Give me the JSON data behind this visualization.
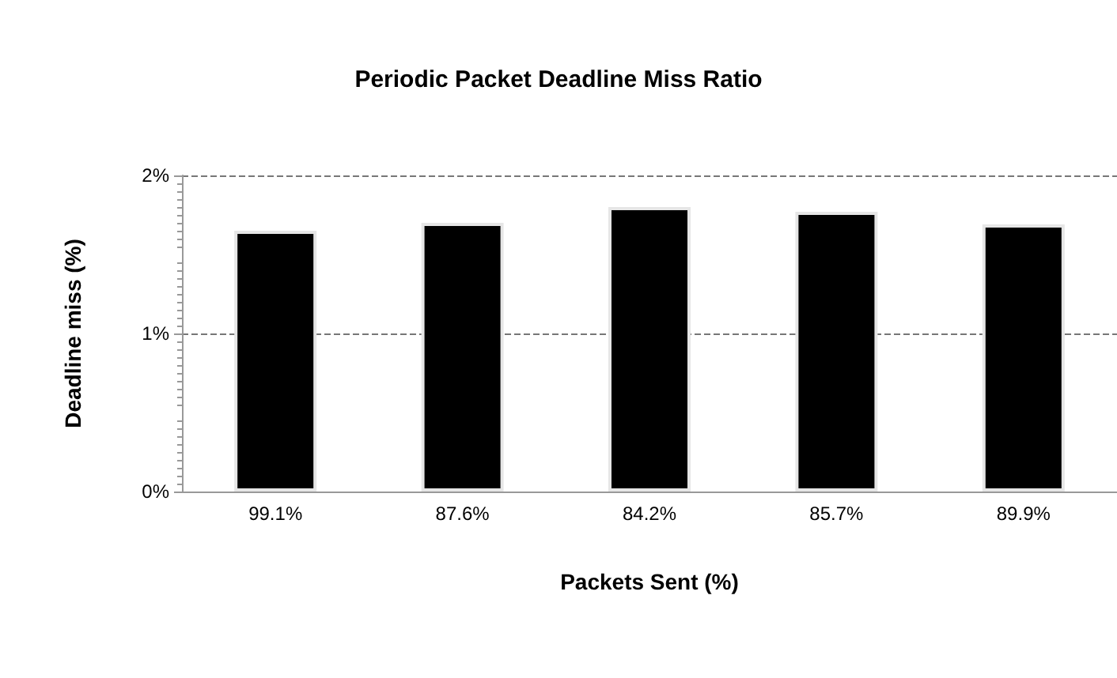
{
  "chart_data": {
    "type": "bar",
    "title": "Periodic Packet Deadline Miss Ratio",
    "xlabel": "Packets Sent (%)",
    "ylabel": "Deadline miss (%)",
    "categories": [
      "99.1%",
      "87.6%",
      "84.2%",
      "85.7%",
      "89.9%"
    ],
    "values": [
      1.65,
      1.7,
      1.8,
      1.77,
      1.69
    ],
    "color": "#000000",
    "ylim": [
      0,
      2
    ],
    "yticks": [
      {
        "value": 0,
        "label": "0%"
      },
      {
        "value": 1,
        "label": "1%"
      },
      {
        "value": 2,
        "label": "2%"
      }
    ],
    "grid": "y"
  }
}
